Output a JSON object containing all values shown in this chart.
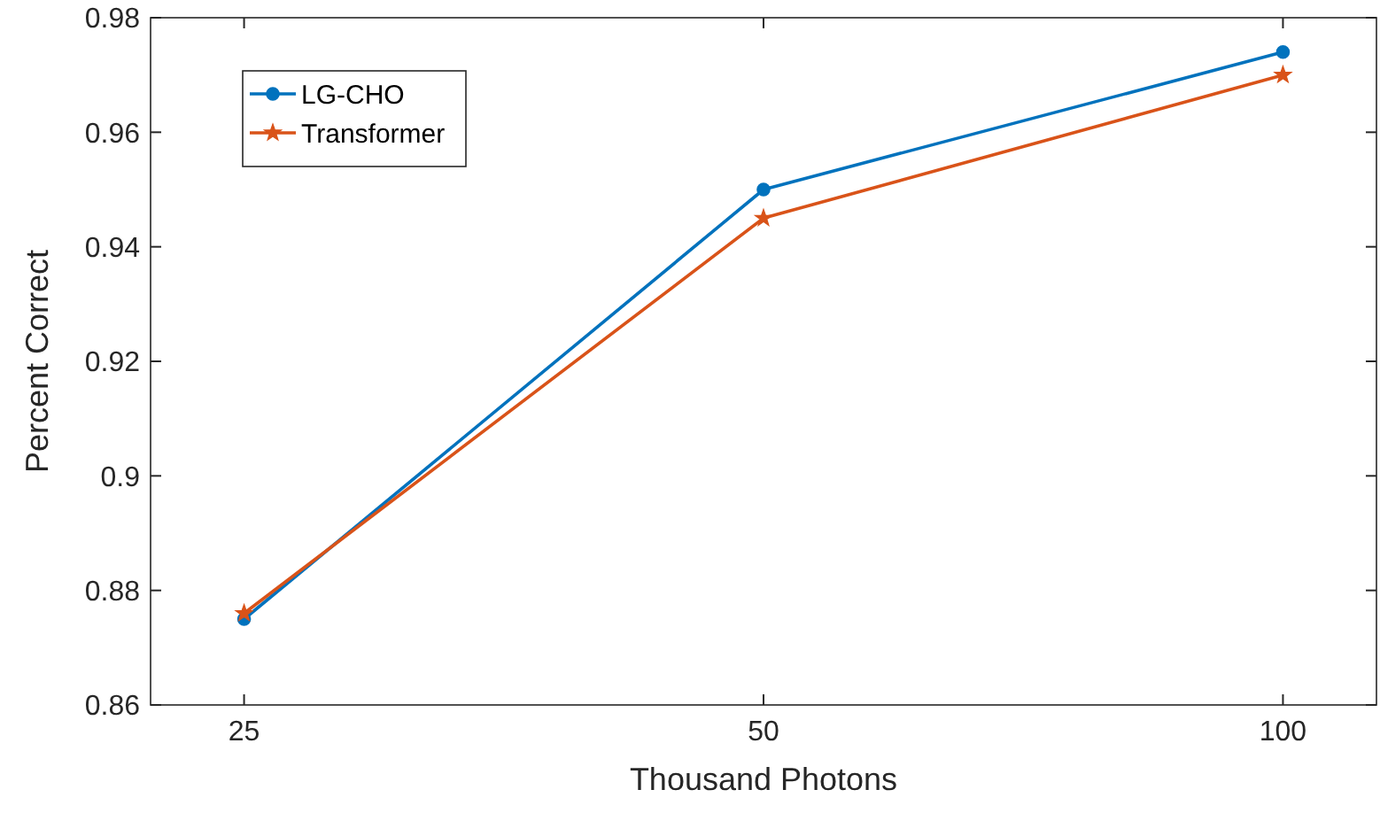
{
  "chart_data": {
    "type": "line",
    "xlabel": "Thousand Photons",
    "ylabel": "Percent Correct",
    "categories": [
      "25",
      "50",
      "100"
    ],
    "ylim": [
      0.86,
      0.98
    ],
    "yticks": [
      0.86,
      0.88,
      0.9,
      0.92,
      0.94,
      0.96,
      0.98
    ],
    "legend": "top left",
    "grid": false,
    "series": [
      {
        "name": "LG-CHO",
        "color": "#0072bd",
        "marker": "circle",
        "values": [
          0.875,
          0.95,
          0.974
        ]
      },
      {
        "name": "Transformer",
        "color": "#d95319",
        "marker": "star",
        "values": [
          0.876,
          0.945,
          0.97
        ]
      }
    ]
  }
}
